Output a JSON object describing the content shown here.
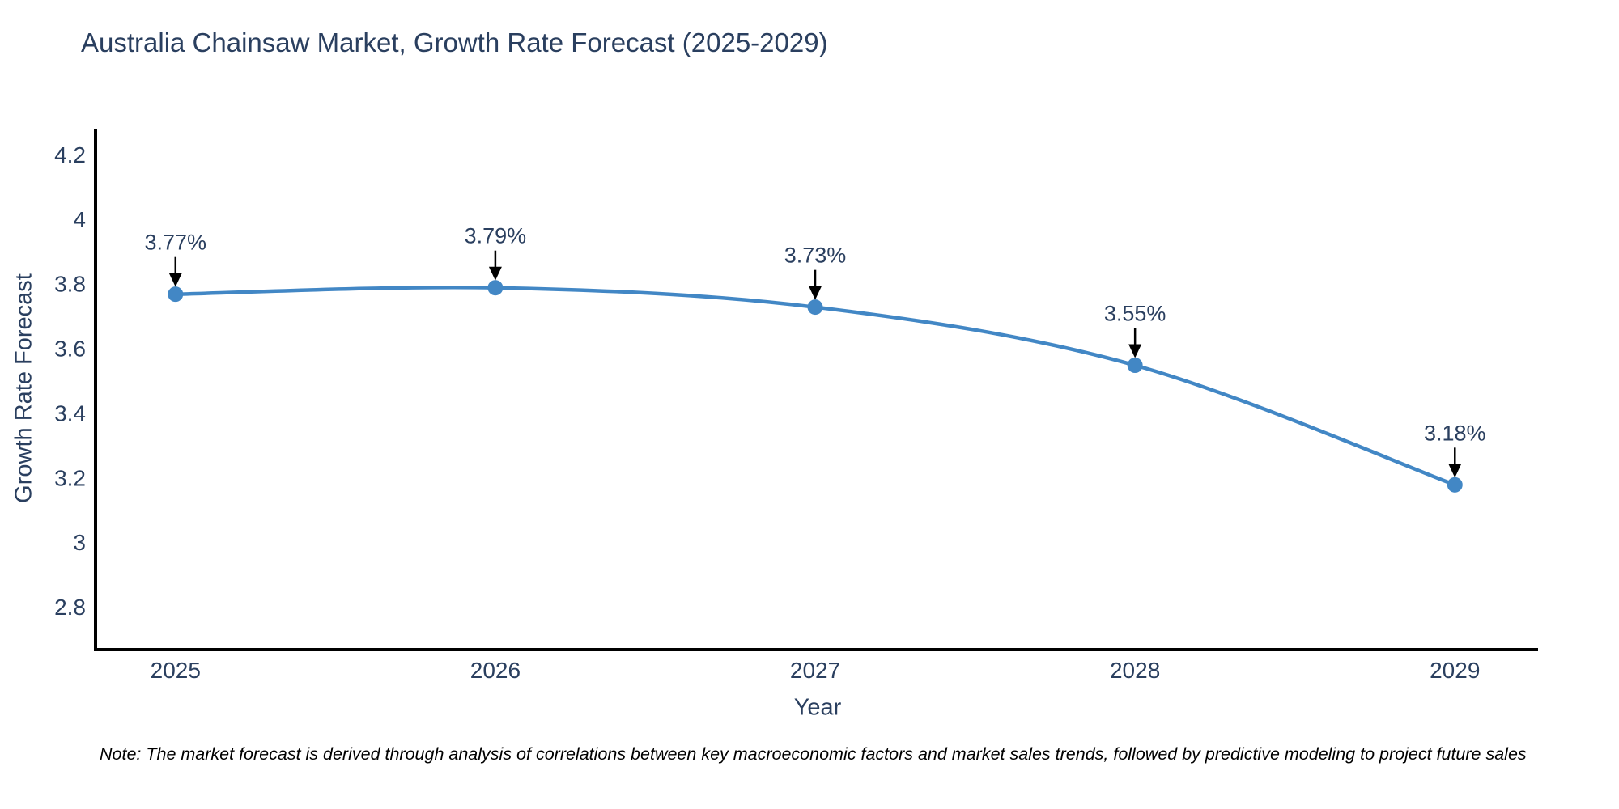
{
  "title": "Australia Chainsaw Market, Growth Rate Forecast (2025-2029)",
  "note": "Note: The market forecast is derived through analysis of correlations between key macroeconomic factors and market sales trends, followed by predictive modeling to project future sales",
  "chart_data": {
    "type": "line",
    "title": "Australia Chainsaw Market, Growth Rate Forecast (2025-2029)",
    "x": [
      2025,
      2026,
      2027,
      2028,
      2029
    ],
    "series": [
      {
        "name": "Growth Rate Forecast",
        "values": [
          3.77,
          3.79,
          3.73,
          3.55,
          3.18
        ]
      }
    ],
    "point_labels": [
      "3.77%",
      "3.79%",
      "3.73%",
      "3.55%",
      "3.18%"
    ],
    "xlabel": "Year",
    "ylabel": "Growth Rate Forecast",
    "x_tick_labels": [
      "2025",
      "2026",
      "2027",
      "2028",
      "2029"
    ],
    "y_ticks": [
      2.8,
      3.0,
      3.2,
      3.4,
      3.6,
      3.8,
      4.0,
      4.2
    ],
    "y_tick_labels": [
      "2.8",
      "3",
      "3.2",
      "3.4",
      "3.6",
      "3.8",
      "4",
      "4.2"
    ],
    "xlim": [
      2024.75,
      2029.26
    ],
    "ylim": [
      2.67,
      4.28
    ],
    "grid": false,
    "legend_position": "none",
    "line_shape": "spline",
    "colors": {
      "line": "#4287c5",
      "marker": "#4287c5",
      "axis": "#000000",
      "tick_text": "#2a3f5f",
      "annotation_text": "#2a3f5f",
      "arrow": "#000000",
      "background": "#ffffff",
      "note_text": "#000000"
    }
  }
}
